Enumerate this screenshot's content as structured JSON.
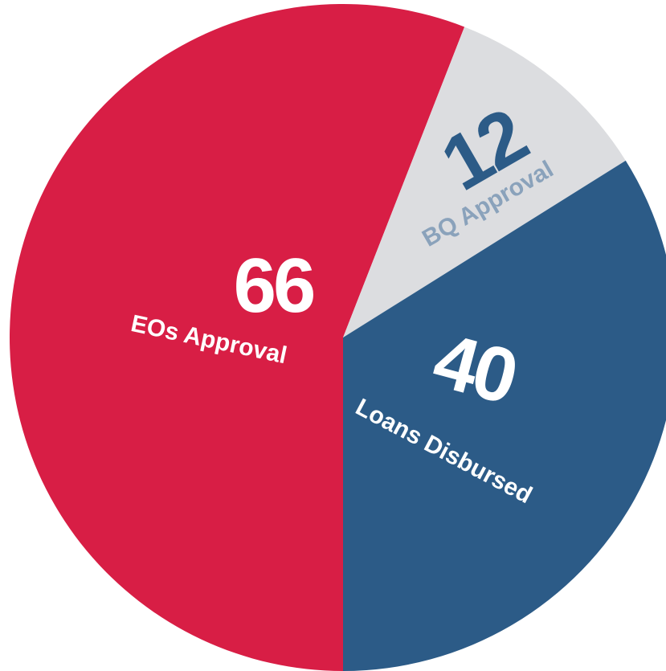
{
  "chart_data": {
    "type": "pie",
    "categories": [
      "EOs Approval",
      "BQ Approval",
      "Loans Disbursed"
    ],
    "values": [
      66,
      12,
      40
    ],
    "colors": [
      "#d81e45",
      "#dcdde0",
      "#2c5b87"
    ]
  }
}
